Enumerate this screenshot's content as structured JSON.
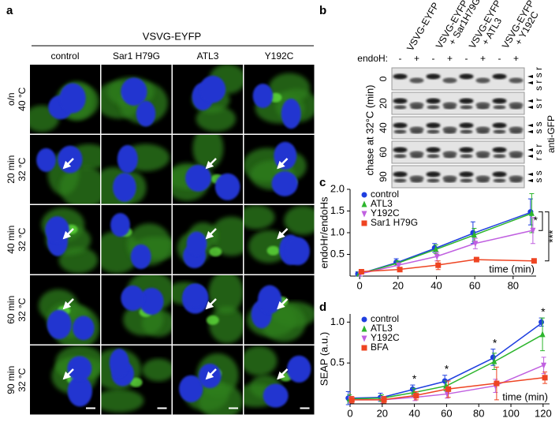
{
  "panel_a": {
    "label": "a",
    "title": "VSVG-EYFP",
    "columns": [
      "control",
      "Sar1 H79G",
      "ATL3",
      "Y192C"
    ],
    "rows": [
      [
        "o/n",
        "40 °C"
      ],
      [
        "20 min",
        "32 °C"
      ],
      [
        "40 min",
        "32 °C"
      ],
      [
        "60 min",
        "32 °C"
      ],
      [
        "90 min",
        "32 °C"
      ]
    ]
  },
  "panel_b": {
    "label": "b",
    "lanes": [
      [
        "VSVG-EYFP"
      ],
      [
        "VSVG-EYFP",
        "+ Sar1H79G"
      ],
      [
        "VSVG-EYFP",
        "+ ATL3"
      ],
      [
        "VSVG-EYFP",
        "+ Y192C"
      ]
    ],
    "endoh_label": "endoH:",
    "endoh_signs": [
      "-",
      "+",
      "-",
      "+",
      "-",
      "+",
      "-",
      "+"
    ],
    "y_label": "chase at 32°C (min)",
    "rows": [
      "0",
      "20",
      "40",
      "60",
      "90"
    ],
    "band_labels": [
      "s r s r",
      "s r",
      "s s",
      "r s r",
      "s s"
    ],
    "antibody": "anti-GFP"
  },
  "chart_data": [
    {
      "type": "line",
      "label": "c",
      "y_label": "endoHr/endoHs",
      "x_note": "time (min)",
      "x": [
        0,
        20,
        40,
        60,
        90
      ],
      "xlim": [
        -5,
        92
      ],
      "xticks": [
        0,
        20,
        40,
        60,
        80
      ],
      "ylim": [
        0,
        2
      ],
      "yticks": [
        0.5,
        {
          "value": 1,
          "label": "1.0"
        },
        1.5,
        {
          "value": 2,
          "label": "2.0"
        }
      ],
      "series": [
        {
          "name": "control",
          "color": "#1f3fe0",
          "marker": "circle",
          "values": [
            0.05,
            0.32,
            0.65,
            1.0,
            1.48
          ],
          "errors": [
            0.05,
            0.08,
            0.1,
            0.25,
            0.3
          ]
        },
        {
          "name": "ATL3",
          "color": "#2db52d",
          "marker": "triangle",
          "values": [
            0.05,
            0.3,
            0.62,
            0.95,
            1.45
          ],
          "errors": [
            0.05,
            0.05,
            0.1,
            0.15,
            0.45
          ]
        },
        {
          "name": "Y192C",
          "color": "#c060e0",
          "marker": "triangle-down",
          "values": [
            0.05,
            0.25,
            0.45,
            0.75,
            1.05
          ],
          "errors": [
            0.05,
            0.05,
            0.1,
            0.12,
            0.3
          ]
        },
        {
          "name": "Sar1 H79G",
          "color": "#ee4422",
          "marker": "square",
          "values": [
            0.1,
            0.15,
            0.25,
            0.38,
            0.35
          ],
          "errors": [
            0.05,
            0.05,
            0.1,
            0.05,
            0.02
          ]
        }
      ],
      "significance": [
        "*",
        "***"
      ]
    },
    {
      "type": "line",
      "label": "d",
      "y_label": "SEAP (a.u.)",
      "x_note": "time (min)",
      "x": [
        0,
        20,
        40,
        60,
        90,
        120
      ],
      "xlim": [
        0,
        124
      ],
      "xticks": [
        0,
        20,
        40,
        60,
        80,
        100,
        120
      ],
      "ylim": [
        0,
        1.1
      ],
      "yticks": [
        0.5,
        {
          "value": 1,
          "label": "1.0"
        }
      ],
      "series": [
        {
          "name": "control",
          "color": "#1f3fe0",
          "marker": "circle",
          "values": [
            0.07,
            0.08,
            0.18,
            0.28,
            0.57,
            1.0
          ],
          "errors": [
            0.08,
            0.05,
            0.05,
            0.07,
            0.1,
            0.05
          ]
        },
        {
          "name": "ATL3",
          "color": "#2db52d",
          "marker": "triangle",
          "values": [
            0.06,
            0.07,
            0.14,
            0.22,
            0.52,
            0.85
          ],
          "errors": [
            0.05,
            0.04,
            0.05,
            0.06,
            0.1,
            0.2
          ]
        },
        {
          "name": "Y192C",
          "color": "#c060e0",
          "marker": "triangle-down",
          "values": [
            0.05,
            0.05,
            0.08,
            0.12,
            0.22,
            0.47
          ],
          "errors": [
            0.04,
            0.04,
            0.04,
            0.05,
            0.08,
            0.1
          ]
        },
        {
          "name": "BFA",
          "color": "#ee4422",
          "marker": "square",
          "values": [
            0.05,
            0.05,
            0.1,
            0.18,
            0.25,
            0.32
          ],
          "errors": [
            0.04,
            0.04,
            0.05,
            0.1,
            0.2,
            0.07
          ]
        }
      ],
      "sig_marks": [
        {
          "x": 40,
          "label": "*"
        },
        {
          "x": 60,
          "label": "*"
        },
        {
          "x": 90,
          "label": "*"
        },
        {
          "x": 120,
          "label": "*"
        }
      ]
    }
  ]
}
